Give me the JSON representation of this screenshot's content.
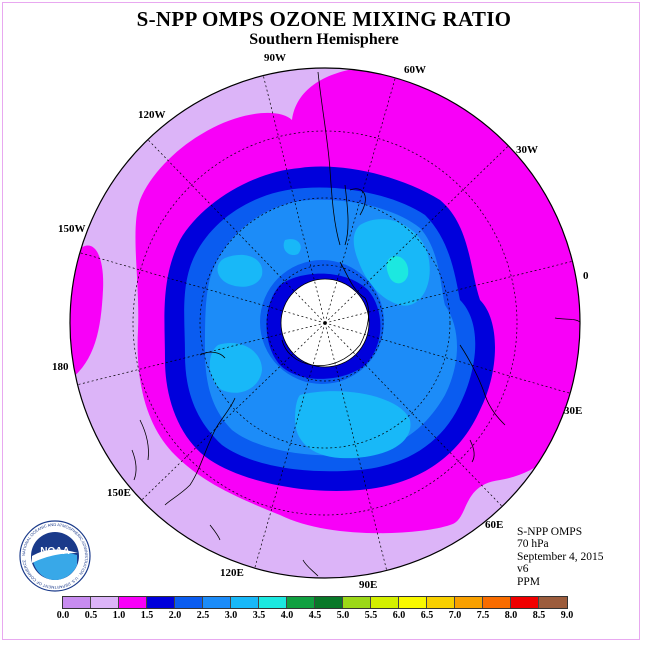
{
  "title": "S-NPP OMPS OZONE MIXING RATIO",
  "subtitle": "Southern Hemisphere",
  "info": {
    "instrument": "S-NPP OMPS",
    "level": "70 hPa",
    "date": "September 4, 2015",
    "version": "v6",
    "units": "PPM"
  },
  "logo_text": "NOAA",
  "logo_ring_text": "NATIONAL OCEANIC AND ATMOSPHERIC ADMINISTRATION · U.S. DEPARTMENT OF COMMERCE",
  "longitude_labels": [
    "90W",
    "60W",
    "30W",
    "0",
    "30E",
    "60E",
    "90E",
    "120E",
    "150E",
    "180",
    "150W",
    "120W"
  ],
  "colorbar": {
    "ticks": [
      "0.0",
      "0.5",
      "1.0",
      "1.5",
      "2.0",
      "2.5",
      "3.0",
      "3.5",
      "4.0",
      "4.5",
      "5.0",
      "5.5",
      "6.0",
      "6.5",
      "7.0",
      "7.5",
      "8.0",
      "8.5",
      "9.0"
    ],
    "colors": [
      "#c88cf0",
      "#dcb4f8",
      "#f800f8",
      "#0000dc",
      "#0a5cf0",
      "#1c8cf8",
      "#18b8f8",
      "#1ce8e0",
      "#10a040",
      "#087828",
      "#9cd818",
      "#d4f000",
      "#f8f800",
      "#f8d000",
      "#f8a000",
      "#f86c00",
      "#f00000",
      "#9c5c3c"
    ]
  },
  "colors": {
    "outer_lavender": "#dcb4f8",
    "magenta": "#f800f8",
    "dark_blue": "#0000dc",
    "blue_2_0": "#0a5cf0",
    "blue_2_5": "#1c8cf8",
    "sky_3_0": "#18b8f8",
    "cyan_3_5": "#1ce8e0"
  }
}
